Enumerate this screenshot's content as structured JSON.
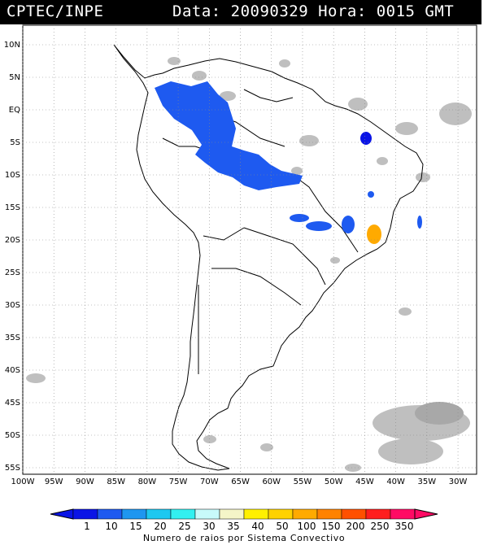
{
  "header": {
    "source": "CPTEC/INPE",
    "datetime": "Data: 20090329 Hora: 0015 GMT"
  },
  "map": {
    "lat_labels": [
      "10N",
      "5N",
      "EQ",
      "5S",
      "10S",
      "15S",
      "20S",
      "25S",
      "30S",
      "35S",
      "40S",
      "45S",
      "50S",
      "55S"
    ],
    "lon_labels": [
      "100W",
      "95W",
      "90W",
      "85W",
      "80W",
      "75W",
      "70W",
      "65W",
      "60W",
      "55W",
      "50W",
      "45W",
      "40W",
      "35W",
      "30W"
    ],
    "lon_range": [
      -100,
      -27
    ],
    "lat_range": [
      -56,
      13
    ],
    "grid": true
  },
  "legend": {
    "labels": [
      "1",
      "10",
      "15",
      "20",
      "25",
      "30",
      "35",
      "40",
      "50",
      "100",
      "150",
      "200",
      "250",
      "350"
    ],
    "colors": [
      "#0a14e6",
      "#1e5af0",
      "#1e96f0",
      "#1ec8f0",
      "#32f0f0",
      "#c8fafa",
      "#f5f5c8",
      "#fff000",
      "#ffd200",
      "#ffaa00",
      "#ff8200",
      "#ff5000",
      "#ff1e1e",
      "#ff0a64"
    ],
    "title": "Numero de raios por Sistema Convectivo"
  }
}
